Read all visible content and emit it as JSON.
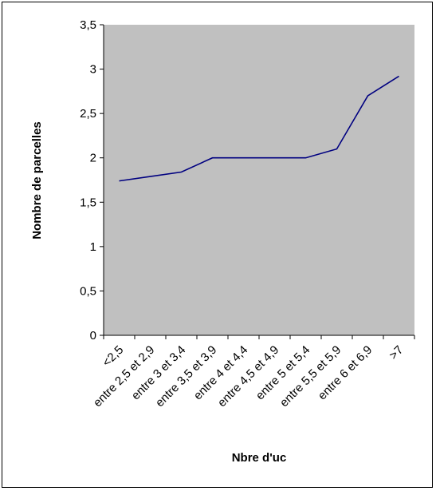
{
  "chart_data": {
    "type": "line",
    "title": "",
    "xlabel": "Nbre d'uc",
    "ylabel": "Nombre de parcelles",
    "categories": [
      "<2,5",
      "entre 2,5 et 2,9",
      "entre 3 et 3,4",
      "entre 3,5 et 3,9",
      "entre 4 et 4,4",
      "entre 4,5 et 4,9",
      "entre 5 et 5,4",
      "entre 5,5 et 5,9",
      "entre 6 et 6,9",
      ">7"
    ],
    "series": [
      {
        "values": [
          1.74,
          1.79,
          1.84,
          2.0,
          2.0,
          2.0,
          2.0,
          2.1,
          2.7,
          2.92
        ]
      }
    ],
    "ylim": [
      0,
      3.5
    ],
    "yticks": [
      "0",
      "0,5",
      "1",
      "1,5",
      "2",
      "2,5",
      "3",
      "3,5"
    ],
    "grid": false,
    "legend": "none",
    "colors": {
      "plot_background": "#c0c0c0",
      "line": "#000080",
      "axis": "#000000"
    }
  }
}
